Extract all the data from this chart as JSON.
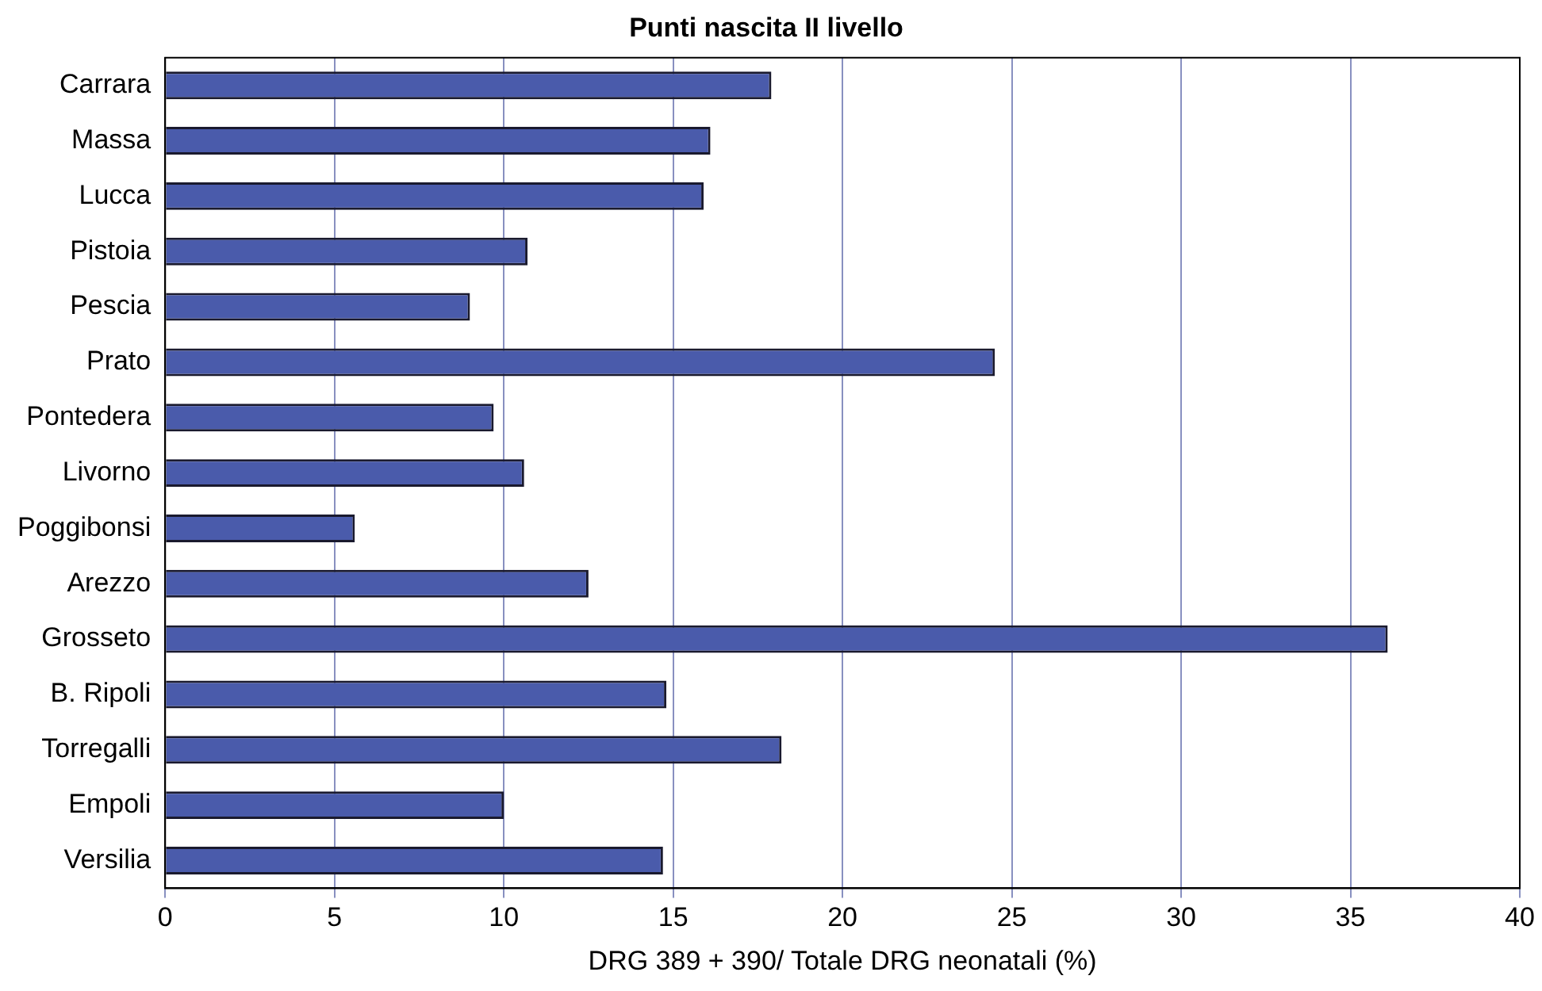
{
  "chart_data": {
    "type": "bar",
    "orientation": "horizontal",
    "title": "Punti nascita II livello",
    "xlabel": "DRG 389 + 390/ Totale DRG neonatali (%)",
    "categories": [
      "Carrara",
      "Massa",
      "Lucca",
      "Pistoia",
      "Pescia",
      "Prato",
      "Pontedera",
      "Livorno",
      "Poggibonsi",
      "Arezzo",
      "Grosseto",
      "B. Ripoli",
      "Torregalli",
      "Empoli",
      "Versilia"
    ],
    "values": [
      17.9,
      16.1,
      15.9,
      10.7,
      9.0,
      24.5,
      9.7,
      10.6,
      5.6,
      12.5,
      36.1,
      14.8,
      18.2,
      10.0,
      14.7
    ],
    "color": "#4a5bab",
    "xlim": [
      0,
      40
    ],
    "xticks": [
      0,
      5,
      10,
      15,
      20,
      25,
      30,
      35,
      40
    ],
    "grid": "x",
    "legend": false
  }
}
